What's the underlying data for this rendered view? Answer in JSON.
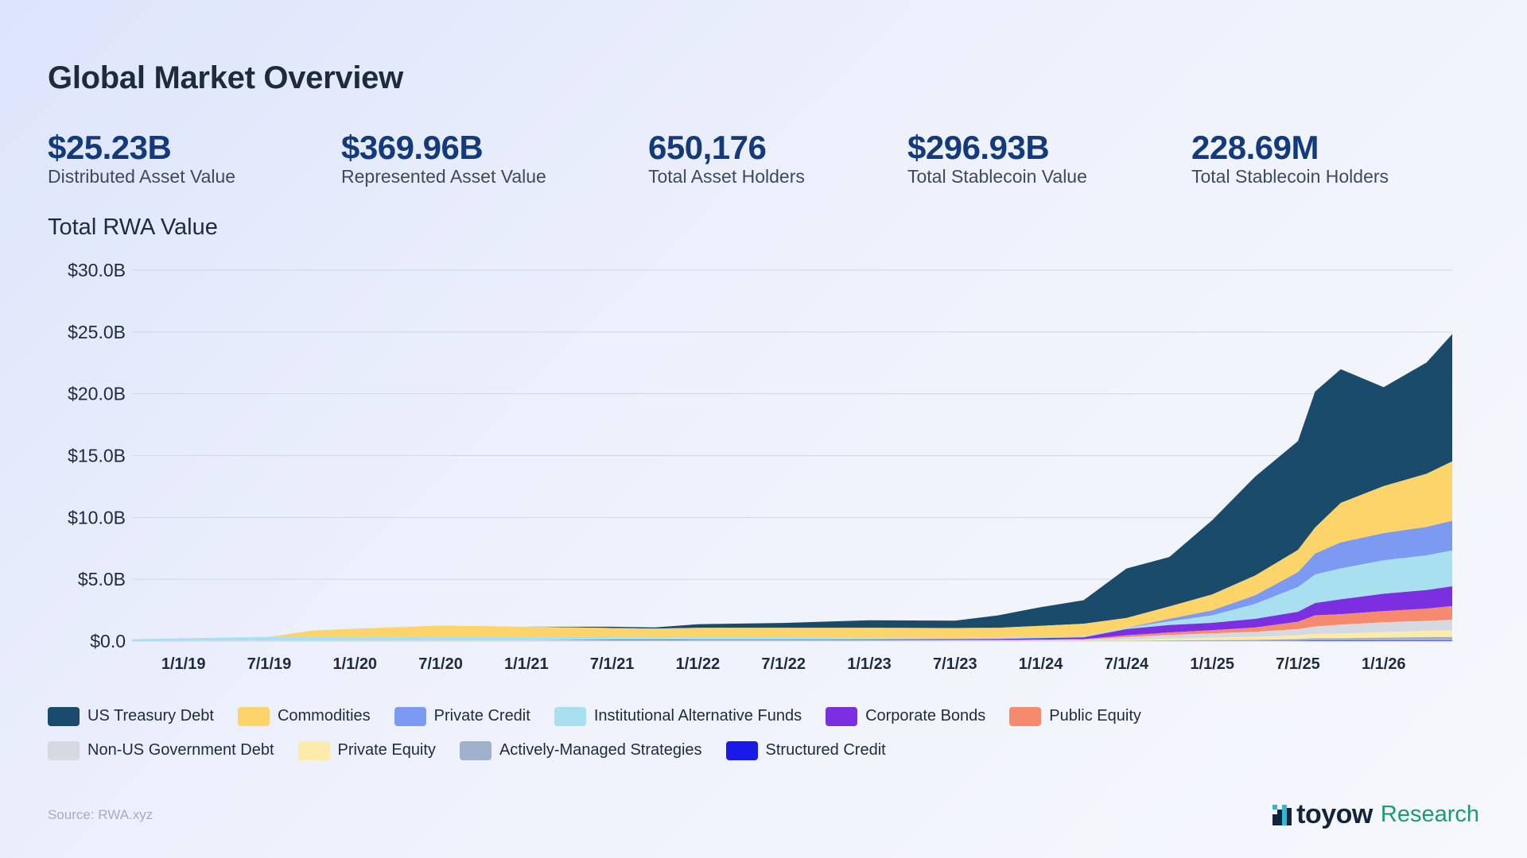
{
  "page": {
    "title": "Global Market Overview",
    "source": "Source: RWA.xyz"
  },
  "stats": [
    {
      "value": "$25.23B",
      "label": "Distributed Asset Value"
    },
    {
      "value": "$369.96B",
      "label": "Represented Asset Value"
    },
    {
      "value": "650,176",
      "label": "Total Asset Holders"
    },
    {
      "value": "$296.93B",
      "label": "Total Stablecoin Value"
    },
    {
      "value": "228.69M",
      "label": "Total Stablecoin Holders"
    }
  ],
  "brand": {
    "name": "toyow",
    "suffix": "Research",
    "logo_icon": "toyow-logo-icon",
    "accent": "#1a9c6e"
  },
  "chart_data": {
    "type": "area",
    "stacked": true,
    "title": "Total RWA Value",
    "ylabel": "",
    "xlabel": "",
    "ylim": [
      0,
      30
    ],
    "y_unit": "$B",
    "y_ticks": [
      "$0.0",
      "$5.0B",
      "$10.0B",
      "$15.0B",
      "$20.0B",
      "$25.0B",
      "$30.0B"
    ],
    "y_tick_values": [
      0,
      5,
      10,
      15,
      20,
      25,
      30
    ],
    "x_ticks": [
      "1/1/19",
      "7/1/19",
      "1/1/20",
      "7/1/20",
      "1/1/21",
      "7/1/21",
      "1/1/22",
      "7/1/22",
      "1/1/23",
      "7/1/23",
      "1/1/24",
      "7/1/24",
      "1/1/25",
      "7/1/25",
      "1/1/26"
    ],
    "x_tick_values": [
      2019.0,
      2019.5,
      2020.0,
      2020.5,
      2021.0,
      2021.5,
      2022.0,
      2022.5,
      2023.0,
      2023.5,
      2024.0,
      2024.5,
      2025.0,
      2025.5,
      2026.0
    ],
    "x_range": [
      2018.7,
      2026.4
    ],
    "grid": true,
    "legend_position": "bottom",
    "x": [
      2018.7,
      2019.0,
      2019.5,
      2019.75,
      2020.0,
      2020.5,
      2021.0,
      2021.5,
      2021.75,
      2022.0,
      2022.5,
      2023.0,
      2023.5,
      2023.75,
      2024.0,
      2024.25,
      2024.5,
      2024.75,
      2025.0,
      2025.25,
      2025.5,
      2025.6,
      2025.75,
      2026.0,
      2026.25,
      2026.4
    ],
    "series": [
      {
        "name": "Structured Credit",
        "color": "#1a1ae8",
        "values": [
          0,
          0,
          0,
          0,
          0,
          0,
          0,
          0,
          0,
          0,
          0,
          0,
          0,
          0,
          0,
          0,
          0,
          0,
          0,
          0,
          0.02,
          0.03,
          0.03,
          0.03,
          0.03,
          0.03
        ]
      },
      {
        "name": "Actively-Managed Strategies",
        "color": "#9fb1cc",
        "values": [
          0,
          0,
          0,
          0,
          0,
          0,
          0,
          0,
          0,
          0,
          0,
          0,
          0,
          0,
          0,
          0,
          0.02,
          0.05,
          0.08,
          0.1,
          0.15,
          0.2,
          0.2,
          0.25,
          0.3,
          0.3
        ]
      },
      {
        "name": "Private Equity",
        "color": "#fcebab",
        "values": [
          0,
          0,
          0,
          0,
          0,
          0,
          0,
          0,
          0,
          0,
          0,
          0,
          0,
          0,
          0,
          0,
          0.1,
          0.15,
          0.2,
          0.25,
          0.3,
          0.35,
          0.4,
          0.45,
          0.5,
          0.55
        ]
      },
      {
        "name": "Non-US Government Debt",
        "color": "#d5d9e2",
        "values": [
          0,
          0.03,
          0.05,
          0.05,
          0.05,
          0.06,
          0.06,
          0.06,
          0.06,
          0.07,
          0.07,
          0.07,
          0.08,
          0.08,
          0.1,
          0.12,
          0.2,
          0.3,
          0.35,
          0.4,
          0.5,
          0.6,
          0.7,
          0.8,
          0.8,
          0.85
        ]
      },
      {
        "name": "Public Equity",
        "color": "#f58a6e",
        "values": [
          0,
          0,
          0,
          0,
          0,
          0,
          0,
          0,
          0,
          0,
          0,
          0,
          0,
          0,
          0.02,
          0.04,
          0.15,
          0.2,
          0.25,
          0.35,
          0.6,
          0.9,
          0.85,
          0.9,
          1.0,
          1.1
        ]
      },
      {
        "name": "Corporate Bonds",
        "color": "#7b2fe0",
        "values": [
          0,
          0,
          0,
          0,
          0,
          0,
          0,
          0.05,
          0.05,
          0.05,
          0.05,
          0.06,
          0.08,
          0.1,
          0.12,
          0.15,
          0.5,
          0.6,
          0.6,
          0.7,
          0.8,
          1.0,
          1.2,
          1.4,
          1.5,
          1.6
        ]
      },
      {
        "name": "Institutional Alternative Funds",
        "color": "#a8e0f0",
        "values": [
          0.15,
          0.2,
          0.3,
          0.3,
          0.25,
          0.3,
          0.3,
          0.25,
          0.2,
          0.2,
          0.2,
          0.15,
          0.1,
          0.1,
          0.1,
          0.1,
          0.1,
          0.3,
          0.6,
          1.2,
          2.0,
          2.3,
          2.5,
          2.7,
          2.8,
          2.9
        ]
      },
      {
        "name": "Private Credit",
        "color": "#7d9af2",
        "values": [
          0,
          0,
          0,
          0,
          0,
          0,
          0,
          0,
          0,
          0,
          0,
          0,
          0,
          0,
          0,
          0,
          0,
          0.2,
          0.4,
          0.7,
          1.2,
          1.7,
          2.1,
          2.2,
          2.3,
          2.4
        ]
      },
      {
        "name": "Commodities",
        "color": "#fcd469",
        "values": [
          0,
          0,
          0,
          0.5,
          0.7,
          0.9,
          0.8,
          0.7,
          0.7,
          0.75,
          0.75,
          0.8,
          0.8,
          0.8,
          0.9,
          1.0,
          0.8,
          1.0,
          1.3,
          1.6,
          1.8,
          2.1,
          3.2,
          3.8,
          4.3,
          4.8
        ]
      },
      {
        "name": "US Treasury Debt",
        "color": "#1b4b6a",
        "values": [
          0,
          0,
          0,
          0,
          0,
          0,
          0,
          0.1,
          0.1,
          0.3,
          0.4,
          0.6,
          0.6,
          1.0,
          1.5,
          1.9,
          4.0,
          4.0,
          6.0,
          8.0,
          8.8,
          11.0,
          10.8,
          8.0,
          9.0,
          10.3
        ]
      }
    ]
  },
  "legend_rows": [
    [
      {
        "label": "US Treasury Debt",
        "color": "#1b4b6a"
      },
      {
        "label": "Commodities",
        "color": "#fcd469"
      },
      {
        "label": "Private Credit",
        "color": "#7d9af2"
      },
      {
        "label": "Institutional Alternative Funds",
        "color": "#a8e0f0"
      },
      {
        "label": "Corporate Bonds",
        "color": "#7b2fe0"
      },
      {
        "label": "Public Equity",
        "color": "#f58a6e"
      }
    ],
    [
      {
        "label": "Non-US Government Debt",
        "color": "#d5d9e2"
      },
      {
        "label": "Private Equity",
        "color": "#fcebab"
      },
      {
        "label": "Actively-Managed Strategies",
        "color": "#9fb1cc"
      },
      {
        "label": "Structured Credit",
        "color": "#1a1ae8"
      }
    ]
  ]
}
